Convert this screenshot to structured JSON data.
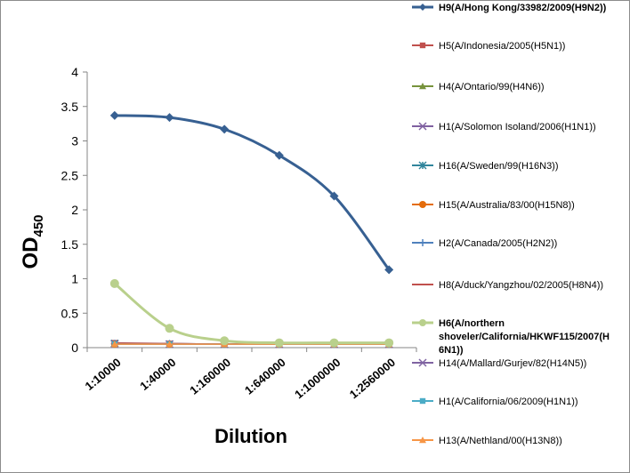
{
  "chart_data": {
    "type": "line",
    "title": "",
    "xlabel": "Dilution",
    "ylabel": "OD",
    "ylabel_subscript": "450",
    "ylim": [
      0,
      4
    ],
    "yticks": [
      0,
      0.5,
      1,
      1.5,
      2,
      2.5,
      3,
      3.5,
      4
    ],
    "ytick_labels": [
      "0",
      "0.5",
      "1",
      "1.5",
      "2",
      "2.5",
      "3",
      "3.5",
      "4"
    ],
    "categories": [
      "1:10000",
      "1:40000",
      "1:160000",
      "1:640000",
      "1:1000000",
      "1:2560000"
    ],
    "grid": false,
    "legend_position": "right",
    "series": [
      {
        "name": "H9(A/Hong Kong/33982/2009(H9N2))",
        "color": "#376092",
        "marker": "diamond",
        "smooth": true,
        "bold": true,
        "values": [
          3.37,
          3.34,
          3.17,
          2.79,
          2.2,
          1.13
        ]
      },
      {
        "name": "H5(A/Indonesia/2005(H5N1))",
        "color": "#c0504d",
        "marker": "square",
        "values": [
          0.07,
          0.06,
          0.05,
          0.05,
          0.05,
          0.05
        ]
      },
      {
        "name": "H4(A/Ontario/99(H4N6))",
        "color": "#77933c",
        "marker": "triangle",
        "values": [
          0.06,
          0.05,
          0.05,
          0.05,
          0.05,
          0.05
        ]
      },
      {
        "name": "H1(A/Solomon Isoland/2006(H1N1))",
        "color": "#7f60a0",
        "marker": "x",
        "values": [
          0.06,
          0.05,
          0.05,
          0.05,
          0.05,
          0.05
        ]
      },
      {
        "name": "H16(A/Sweden/99(H16N3))",
        "color": "#31859c",
        "marker": "star",
        "values": [
          0.06,
          0.05,
          0.05,
          0.05,
          0.05,
          0.05
        ]
      },
      {
        "name": "H15(A/Australia/83/00(H15N8))",
        "color": "#e46c0a",
        "marker": "circle",
        "values": [
          0.05,
          0.05,
          0.05,
          0.05,
          0.05,
          0.05
        ]
      },
      {
        "name": "H2(A/Canada/2005(H2N2))",
        "color": "#4f81bd",
        "marker": "plus",
        "values": [
          0.06,
          0.06,
          0.05,
          0.05,
          0.05,
          0.05
        ]
      },
      {
        "name": "H8(A/duck/Yangzhou/02/2005(H8N4))",
        "color": "#c0504d",
        "marker": "dash",
        "values": [
          0.06,
          0.06,
          0.05,
          0.05,
          0.05,
          0.05
        ]
      },
      {
        "name": "H6(A/northern shoveler/California/HKWF115/2007(H6N1))",
        "name_lines": [
          "H6(A/northern",
          "shoveler/California/HKWF115/2007(H",
          "6N1))"
        ],
        "color": "#b9d08c",
        "marker": "circle",
        "smooth": true,
        "bold": true,
        "values": [
          0.93,
          0.28,
          0.1,
          0.07,
          0.07,
          0.07
        ]
      },
      {
        "name": "H14(A/Mallard/Gurjev/82(H14N5))",
        "color": "#8064a2",
        "marker": "x",
        "values": [
          0.05,
          0.05,
          0.05,
          0.05,
          0.05,
          0.05
        ]
      },
      {
        "name": "H1(A/California/06/2009(H1N1))",
        "color": "#4bacc6",
        "marker": "square",
        "values": [
          0.05,
          0.05,
          0.05,
          0.05,
          0.05,
          0.05
        ]
      },
      {
        "name": "H13(A/Nethland/00(H13N8))",
        "color": "#f79646",
        "marker": "triangle",
        "values": [
          0.05,
          0.05,
          0.05,
          0.05,
          0.05,
          0.05
        ]
      }
    ]
  }
}
